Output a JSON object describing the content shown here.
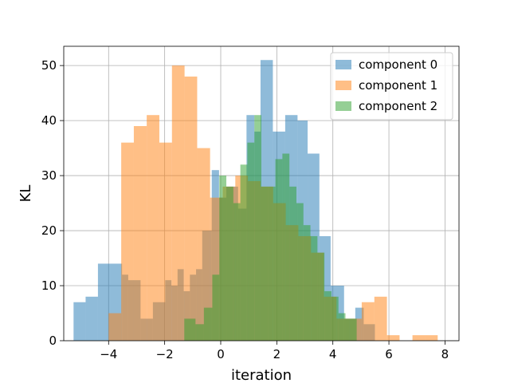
{
  "chart_data": {
    "type": "bar",
    "title": "",
    "xlabel": "iteration",
    "ylabel": "KL",
    "xlim": [
      -5.6,
      8.5
    ],
    "ylim": [
      0,
      53.5
    ],
    "xticks": [
      "−4",
      "−2",
      "0",
      "2",
      "4",
      "6",
      "8"
    ],
    "xtick_values": [
      -4,
      -2,
      0,
      2,
      4,
      6,
      8
    ],
    "yticks": [
      "0",
      "10",
      "20",
      "30",
      "40",
      "50"
    ],
    "ytick_values": [
      0,
      10,
      20,
      30,
      40,
      50
    ],
    "grid": true,
    "legend_position": "top-right",
    "series": [
      {
        "name": "component 0",
        "color": "#1f77b4",
        "alpha": 0.5,
        "bins": [
          [
            -5.25,
            -4.82,
            7
          ],
          [
            -4.82,
            -4.38,
            8
          ],
          [
            -4.38,
            -3.52,
            14
          ],
          [
            -3.52,
            -3.3,
            12
          ],
          [
            -3.3,
            -2.86,
            11
          ],
          [
            -2.86,
            -2.42,
            4
          ],
          [
            -2.42,
            -1.98,
            7
          ],
          [
            -1.98,
            -1.76,
            11
          ],
          [
            -1.76,
            -1.54,
            10
          ],
          [
            -1.54,
            -1.32,
            13
          ],
          [
            -1.32,
            -1.1,
            9
          ],
          [
            -1.1,
            -0.88,
            12
          ],
          [
            -0.88,
            -0.66,
            13
          ],
          [
            -0.66,
            -0.32,
            20
          ],
          [
            -0.32,
            -0.06,
            31
          ],
          [
            -0.06,
            0.2,
            26
          ],
          [
            0.2,
            0.62,
            28
          ],
          [
            0.62,
            0.92,
            24
          ],
          [
            0.92,
            1.2,
            41
          ],
          [
            1.2,
            1.42,
            38
          ],
          [
            1.42,
            1.86,
            51
          ],
          [
            1.86,
            2.3,
            38
          ],
          [
            2.3,
            2.74,
            41
          ],
          [
            2.74,
            3.1,
            40
          ],
          [
            3.1,
            3.52,
            34
          ],
          [
            3.52,
            3.92,
            19
          ],
          [
            3.92,
            4.4,
            10
          ],
          [
            4.4,
            4.8,
            4
          ],
          [
            4.8,
            5.1,
            6
          ],
          [
            5.1,
            5.5,
            3
          ]
        ]
      },
      {
        "name": "component 1",
        "color": "#ff7f0e",
        "alpha": 0.5,
        "bins": [
          [
            -4.0,
            -3.55,
            5
          ],
          [
            -3.55,
            -3.1,
            36
          ],
          [
            -3.1,
            -2.64,
            39
          ],
          [
            -2.64,
            -2.19,
            41
          ],
          [
            -2.19,
            -1.74,
            36
          ],
          [
            -1.74,
            -1.29,
            50
          ],
          [
            -1.29,
            -0.84,
            48
          ],
          [
            -0.84,
            -0.38,
            35
          ],
          [
            -0.38,
            0.07,
            26
          ],
          [
            0.07,
            0.52,
            28
          ],
          [
            0.52,
            0.97,
            30
          ],
          [
            0.97,
            1.42,
            29
          ],
          [
            1.42,
            1.87,
            28
          ],
          [
            1.87,
            2.32,
            25
          ],
          [
            2.32,
            2.77,
            21
          ],
          [
            2.77,
            3.22,
            19
          ],
          [
            3.22,
            3.68,
            16
          ],
          [
            3.68,
            4.13,
            8
          ],
          [
            4.13,
            4.58,
            4
          ],
          [
            4.58,
            5.03,
            4
          ],
          [
            5.03,
            5.48,
            7
          ],
          [
            5.48,
            5.93,
            8
          ],
          [
            5.93,
            6.38,
            1
          ],
          [
            6.38,
            6.84,
            0
          ],
          [
            6.84,
            7.29,
            1
          ],
          [
            7.29,
            7.74,
            1
          ]
        ]
      },
      {
        "name": "component 2",
        "color": "#2ca02c",
        "alpha": 0.5,
        "bins": [
          [
            -1.3,
            -0.9,
            4
          ],
          [
            -0.9,
            -0.6,
            3
          ],
          [
            -0.6,
            -0.3,
            6
          ],
          [
            -0.3,
            -0.05,
            12
          ],
          [
            -0.05,
            0.2,
            30
          ],
          [
            0.2,
            0.45,
            28
          ],
          [
            0.45,
            0.7,
            25
          ],
          [
            0.7,
            0.95,
            32
          ],
          [
            0.95,
            1.2,
            36
          ],
          [
            1.2,
            1.45,
            41
          ],
          [
            1.45,
            1.7,
            28
          ],
          [
            1.7,
            1.95,
            28
          ],
          [
            1.95,
            2.2,
            33
          ],
          [
            2.2,
            2.45,
            34
          ],
          [
            2.45,
            2.7,
            28
          ],
          [
            2.7,
            2.95,
            25
          ],
          [
            2.95,
            3.2,
            21
          ],
          [
            3.2,
            3.45,
            19
          ],
          [
            3.45,
            3.7,
            16
          ],
          [
            3.7,
            3.95,
            9
          ],
          [
            3.95,
            4.2,
            8
          ],
          [
            4.2,
            4.45,
            5
          ],
          [
            4.45,
            4.85,
            4
          ]
        ]
      }
    ]
  }
}
